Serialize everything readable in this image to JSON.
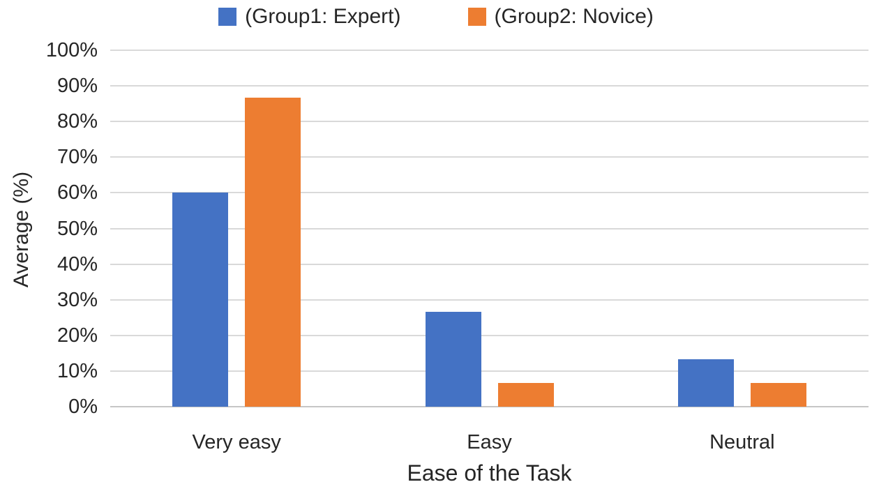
{
  "chart_data": {
    "type": "bar",
    "title": "",
    "categories": [
      "Very easy",
      "Easy",
      "Neutral"
    ],
    "series": [
      {
        "name": "(Group1: Expert)",
        "color": "#4472C4",
        "values": [
          60,
          26.7,
          13.3
        ]
      },
      {
        "name": "(Group2: Novice)",
        "color": "#ED7D31",
        "values": [
          86.7,
          6.7,
          6.7
        ]
      }
    ],
    "xlabel": "Ease of the Task",
    "ylabel": "Average (%)",
    "ylim": [
      0,
      100
    ],
    "ytick_step": 10,
    "yticks": [
      "0%",
      "10%",
      "20%",
      "30%",
      "40%",
      "50%",
      "60%",
      "70%",
      "80%",
      "90%",
      "100%"
    ],
    "grid": "horizontal",
    "legend_position": "top",
    "colors": {
      "gridline": "#D9D9D9",
      "axis_line": "#C6C6C6",
      "text": "#262626",
      "background": "#FFFFFF"
    }
  }
}
